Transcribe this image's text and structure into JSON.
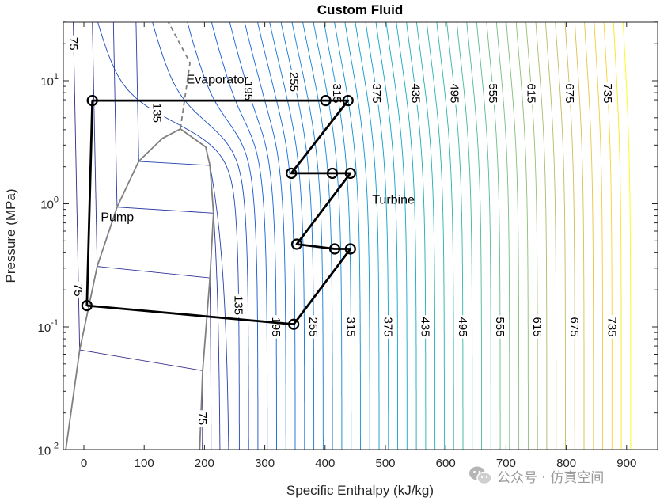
{
  "chart_data": {
    "type": "line",
    "title": "Custom Fluid",
    "xlabel": "Specific Enthalpy (kJ/kg)",
    "ylabel": "Pressure (MPa)",
    "xlim": [
      -34,
      951
    ],
    "ylim": [
      0.01,
      30
    ],
    "yscale": "log",
    "xticks": [
      0,
      100,
      200,
      300,
      400,
      500,
      600,
      700,
      800,
      900
    ],
    "yticks": [
      {
        "base": "10",
        "exp": "-2",
        "value": 0.01
      },
      {
        "base": "10",
        "exp": "-1",
        "value": 0.1
      },
      {
        "base": "10",
        "exp": "0",
        "value": 1
      },
      {
        "base": "10",
        "exp": "1",
        "value": 10
      }
    ],
    "grid": false,
    "colormap": "parula",
    "isotherm_levels": {
      "start": 75,
      "stop": 765,
      "step": 15
    },
    "colors": {
      "cycle": "#000000",
      "dome": "#808080",
      "cmap_low": "#352a87",
      "cmap_high": "#f9fb0e"
    },
    "saturation_liquid": [
      [
        -30,
        0.01
      ],
      [
        -7,
        0.065
      ],
      [
        22,
        0.31
      ],
      [
        55,
        0.94
      ],
      [
        91,
        2.21
      ],
      [
        130,
        3.4
      ],
      [
        160,
        4.06
      ]
    ],
    "saturation_vapor": [
      [
        160,
        4.06
      ],
      [
        202,
        2.9
      ],
      [
        209,
        2.05
      ],
      [
        215,
        0.84
      ],
      [
        209,
        0.25
      ],
      [
        197,
        0.044
      ],
      [
        192,
        0.01
      ]
    ],
    "critical_extension": [
      [
        160,
        4.06
      ],
      [
        176,
        14
      ],
      [
        140,
        30
      ]
    ],
    "subcritical_isotherms": [
      {
        "level": 75,
        "h_liquid": -7,
        "p_liquid": 0.065,
        "h_vapor": 197,
        "p_vapor": 0.044
      },
      {
        "level": 90,
        "h_liquid": 22,
        "p_liquid": 0.31,
        "h_vapor": 209,
        "p_vapor": 0.25
      },
      {
        "level": 105,
        "h_liquid": 55,
        "p_liquid": 0.94,
        "h_vapor": 215,
        "p_vapor": 0.84
      },
      {
        "level": 120,
        "h_liquid": 91,
        "p_liquid": 2.21,
        "h_vapor": 209,
        "p_vapor": 2.05
      }
    ],
    "contour_labels": [
      {
        "text": "75",
        "level": 75,
        "branch": "liquid",
        "p": 20
      },
      {
        "text": "135",
        "level": 135,
        "p": 5.5
      },
      {
        "text": "195",
        "level": 195,
        "p": 8.3
      },
      {
        "text": "255",
        "level": 255,
        "p": 9.8
      },
      {
        "text": "315",
        "level": 315,
        "p": 7.9
      },
      {
        "text": "375",
        "level": 375,
        "p": 7.9
      },
      {
        "text": "435",
        "level": 435,
        "p": 7.9
      },
      {
        "text": "495",
        "level": 495,
        "p": 7.9
      },
      {
        "text": "555",
        "level": 555,
        "p": 7.9
      },
      {
        "text": "615",
        "level": 615,
        "p": 7.9
      },
      {
        "text": "675",
        "level": 675,
        "p": 7.9
      },
      {
        "text": "735",
        "level": 735,
        "p": 7.9
      },
      {
        "text": "75",
        "level": 75,
        "branch": "liquid",
        "p": 0.2
      },
      {
        "text": "135",
        "level": 135,
        "p": 0.15
      },
      {
        "text": "195",
        "level": 195,
        "p": 0.1
      },
      {
        "text": "255",
        "level": 255,
        "p": 0.1
      },
      {
        "text": "315",
        "level": 315,
        "p": 0.1
      },
      {
        "text": "375",
        "level": 375,
        "p": 0.1
      },
      {
        "text": "435",
        "level": 435,
        "p": 0.1
      },
      {
        "text": "495",
        "level": 495,
        "p": 0.1
      },
      {
        "text": "555",
        "level": 555,
        "p": 0.1
      },
      {
        "text": "615",
        "level": 615,
        "p": 0.1
      },
      {
        "text": "675",
        "level": 675,
        "p": 0.1
      },
      {
        "text": "735",
        "level": 735,
        "p": 0.1
      },
      {
        "text": "75",
        "level": 75,
        "branch": "vapor",
        "p": 0.018
      }
    ],
    "cycle_points": [
      [
        5,
        0.149
      ],
      [
        14,
        6.9
      ],
      [
        401,
        6.9
      ],
      [
        438,
        6.9
      ],
      [
        344,
        1.77
      ],
      [
        412,
        1.77
      ],
      [
        442,
        1.77
      ],
      [
        353,
        0.47
      ],
      [
        416,
        0.43
      ],
      [
        442,
        0.43
      ],
      [
        348,
        0.105
      ]
    ],
    "cycle_path": [
      0,
      1,
      2,
      3,
      4,
      5,
      6,
      7,
      8,
      9,
      10,
      0
    ],
    "annotations": [
      {
        "text": "Evaporator",
        "h": 170,
        "p": 9.5
      },
      {
        "text": "Pump",
        "h": 28,
        "p": 0.72
      },
      {
        "text": "Turbine",
        "h": 478,
        "p": 1.0
      }
    ]
  },
  "watermark": {
    "icon": "wechat-icon",
    "text": "公众号 · 仿真空间"
  }
}
